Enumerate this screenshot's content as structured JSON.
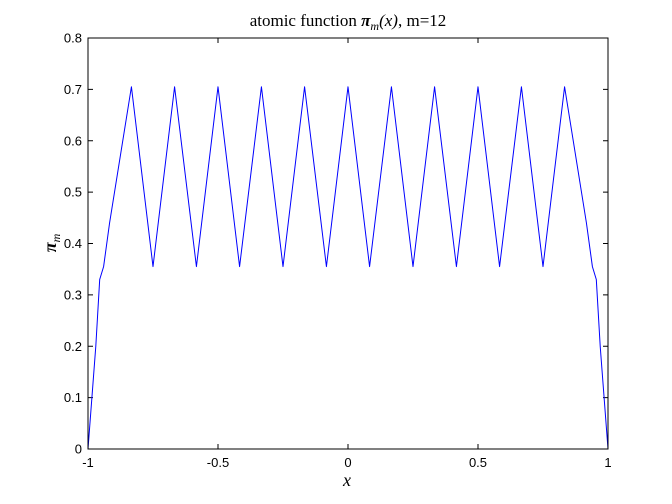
{
  "chart_data": {
    "type": "line",
    "title": "atomic function π_m(x), m=12",
    "title_parts": {
      "lead": "atomic function ",
      "symbol": "π",
      "subscript": "m",
      "argument": "(x)",
      "suffix": ", m=12"
    },
    "xlabel": "x",
    "ylabel": "π",
    "ylabel_subscript": "m",
    "xlim": [
      -1,
      1
    ],
    "ylim": [
      0,
      0.8
    ],
    "xticks": [
      -1,
      -0.5,
      0,
      0.5,
      1
    ],
    "xtick_labels": [
      "-1",
      "-0.5",
      "0",
      "0.5",
      "1"
    ],
    "yticks": [
      0,
      0.1,
      0.2,
      0.3,
      0.4,
      0.5,
      0.6,
      0.7,
      0.8
    ],
    "ytick_labels": [
      "0",
      "0.1",
      "0.2",
      "0.3",
      "0.4",
      "0.5",
      "0.6",
      "0.7",
      "0.8"
    ],
    "grid": false,
    "series": [
      {
        "color": "#0000ff",
        "x": [
          -1.0,
          -0.97,
          -0.955,
          -0.94,
          -0.917,
          -0.833,
          -0.75,
          -0.667,
          -0.583,
          -0.5,
          -0.417,
          -0.333,
          -0.25,
          -0.167,
          -0.083,
          0.0,
          0.083,
          0.167,
          0.25,
          0.333,
          0.417,
          0.5,
          0.583,
          0.667,
          0.75,
          0.833,
          0.917,
          0.94,
          0.955,
          0.97,
          1.0
        ],
        "y": [
          0.0,
          0.2,
          0.33,
          0.355,
          0.44,
          0.705,
          0.355,
          0.705,
          0.355,
          0.705,
          0.355,
          0.705,
          0.355,
          0.705,
          0.355,
          0.705,
          0.355,
          0.705,
          0.355,
          0.705,
          0.355,
          0.705,
          0.355,
          0.705,
          0.355,
          0.705,
          0.44,
          0.355,
          0.33,
          0.2,
          0.0
        ]
      }
    ]
  }
}
